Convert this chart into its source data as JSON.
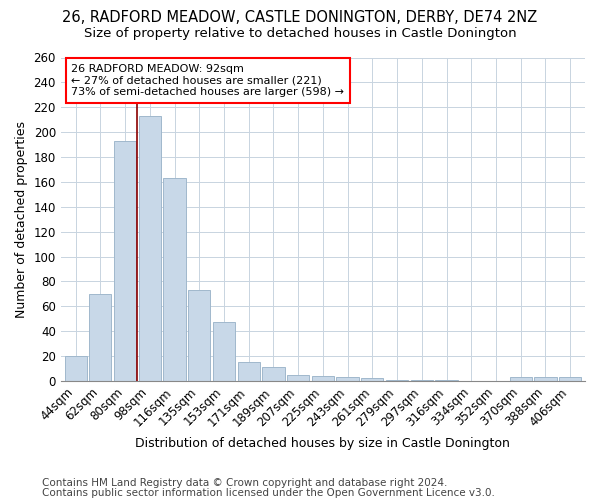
{
  "title1": "26, RADFORD MEADOW, CASTLE DONINGTON, DERBY, DE74 2NZ",
  "title2": "Size of property relative to detached houses in Castle Donington",
  "xlabel": "Distribution of detached houses by size in Castle Donington",
  "ylabel": "Number of detached properties",
  "categories": [
    "44sqm",
    "62sqm",
    "80sqm",
    "98sqm",
    "116sqm",
    "135sqm",
    "153sqm",
    "171sqm",
    "189sqm",
    "207sqm",
    "225sqm",
    "243sqm",
    "261sqm",
    "279sqm",
    "297sqm",
    "316sqm",
    "334sqm",
    "352sqm",
    "370sqm",
    "388sqm",
    "406sqm"
  ],
  "values": [
    20,
    70,
    193,
    213,
    163,
    73,
    47,
    15,
    11,
    5,
    4,
    3,
    2,
    1,
    1,
    1,
    0,
    0,
    3,
    3,
    3
  ],
  "bar_color": "#c8d8e8",
  "bar_edge_color": "#a0b8cc",
  "vline_pos": 2.5,
  "annotation_text": "26 RADFORD MEADOW: 92sqm\n← 27% of detached houses are smaller (221)\n73% of semi-detached houses are larger (598) →",
  "annotation_box_color": "white",
  "annotation_box_edge_color": "red",
  "vline_color": "darkred",
  "footnote1": "Contains HM Land Registry data © Crown copyright and database right 2024.",
  "footnote2": "Contains public sector information licensed under the Open Government Licence v3.0.",
  "ylim": [
    0,
    260
  ],
  "title_fontsize": 10.5,
  "subtitle_fontsize": 9.5,
  "tick_fontsize": 8.5,
  "label_fontsize": 9,
  "annotation_fontsize": 8,
  "footnote_fontsize": 7.5,
  "background_color": "#ffffff",
  "plot_background_color": "#ffffff",
  "grid_color": "#c8d4e0"
}
